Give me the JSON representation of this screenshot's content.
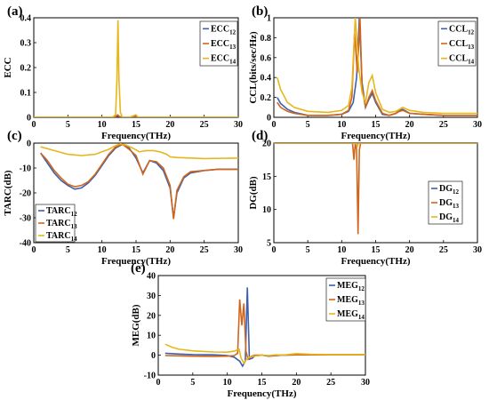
{
  "colors": {
    "s12": "#3c5fb0",
    "s13": "#d0661c",
    "s14": "#e8b619"
  },
  "chart_data": [
    {
      "panel": "(a)",
      "type": "line",
      "xlabel": "Frequency(THz)",
      "ylabel": "ECC",
      "xlim": [
        0,
        30
      ],
      "ylim": [
        0,
        0.4
      ],
      "xticks": [
        0,
        5,
        10,
        15,
        20,
        25,
        30
      ],
      "yticks": [
        0,
        0.1,
        0.2,
        0.3,
        0.4
      ],
      "ytick_labels": [
        "0",
        "0.1",
        "0.2",
        "0.3",
        "0.4"
      ],
      "legend": "top-right",
      "series": [
        {
          "name": "ECC",
          "sub": "12",
          "x": [
            0,
            11.5,
            12,
            12.3,
            12.6,
            13,
            14,
            15,
            15.3,
            16,
            30
          ],
          "y": [
            0,
            0,
            0.002,
            0.005,
            0.002,
            0,
            0,
            0.004,
            0,
            0,
            0
          ]
        },
        {
          "name": "ECC",
          "sub": "13",
          "x": [
            0,
            11.5,
            12,
            12.3,
            12.6,
            13,
            30
          ],
          "y": [
            0,
            0,
            0.003,
            0.01,
            0.003,
            0,
            0
          ]
        },
        {
          "name": "ECC",
          "sub": "14",
          "x": [
            0,
            11.5,
            12,
            12.2,
            12.35,
            12.5,
            12.7,
            13,
            14,
            15,
            15.3,
            16,
            30
          ],
          "y": [
            0,
            0,
            0.01,
            0.15,
            0.39,
            0.15,
            0.02,
            0,
            0,
            0.01,
            0,
            0,
            0
          ]
        }
      ]
    },
    {
      "panel": "(b)",
      "type": "line",
      "xlabel": "Frequency(THz)",
      "ylabel": "CCL(bits/sec/Hz)",
      "xlim": [
        0,
        30
      ],
      "ylim": [
        0,
        1
      ],
      "xticks": [
        0,
        5,
        10,
        15,
        20,
        25,
        30
      ],
      "yticks": [
        0,
        0.2,
        0.4,
        0.6,
        0.8,
        1
      ],
      "ytick_labels": [
        "0",
        "0.2",
        "0.4",
        "0.6",
        "0.8",
        "1"
      ],
      "legend": "top-right",
      "series": [
        {
          "name": "CCL",
          "sub": "12",
          "x": [
            0.5,
            1,
            2,
            3,
            5,
            8,
            10,
            11,
            11.7,
            12.2,
            12.6,
            13,
            13.5,
            14,
            14.5,
            15,
            16,
            17,
            18,
            18.5,
            19,
            20,
            22,
            25,
            30
          ],
          "y": [
            0.2,
            0.14,
            0.08,
            0.05,
            0.02,
            0.02,
            0.03,
            0.06,
            0.15,
            0.4,
            1.0,
            0.35,
            0.1,
            0.18,
            0.24,
            0.15,
            0.03,
            0.02,
            0.04,
            0.07,
            0.08,
            0.04,
            0.03,
            0.02,
            0.02
          ]
        },
        {
          "name": "CCL",
          "sub": "13",
          "x": [
            0.5,
            1,
            2,
            3,
            5,
            8,
            10,
            11,
            11.5,
            11.9,
            12.3,
            12.7,
            13,
            13.5,
            14,
            14.5,
            15,
            16,
            17,
            18,
            18.5,
            19,
            20,
            22,
            25,
            30
          ],
          "y": [
            0.15,
            0.1,
            0.06,
            0.04,
            0.02,
            0.02,
            0.03,
            0.07,
            0.2,
            0.85,
            0.45,
            1.0,
            0.3,
            0.1,
            0.2,
            0.27,
            0.17,
            0.04,
            0.02,
            0.04,
            0.06,
            0.07,
            0.04,
            0.03,
            0.02,
            0.02
          ]
        },
        {
          "name": "CCL",
          "sub": "14",
          "x": [
            0.5,
            1,
            2,
            3,
            5,
            8,
            10,
            11,
            11.5,
            12,
            12.5,
            13,
            13.5,
            14,
            14.5,
            15,
            16,
            17,
            18,
            19,
            20,
            22,
            25,
            30
          ],
          "y": [
            0.4,
            0.28,
            0.15,
            0.1,
            0.06,
            0.05,
            0.07,
            0.12,
            0.3,
            1.0,
            0.5,
            0.25,
            0.15,
            0.35,
            0.42,
            0.25,
            0.08,
            0.05,
            0.06,
            0.1,
            0.07,
            0.05,
            0.04,
            0.04
          ]
        }
      ]
    },
    {
      "panel": "(c)",
      "type": "line",
      "xlabel": "Frequency(THz)",
      "ylabel": "TARC(dB)",
      "xlim": [
        0,
        30
      ],
      "ylim": [
        -40,
        0
      ],
      "xticks": [
        0,
        5,
        10,
        15,
        20,
        25,
        30
      ],
      "yticks": [
        -40,
        -30,
        -20,
        -10,
        0
      ],
      "ytick_labels": [
        "-40",
        "-30",
        "-20",
        "-10",
        "0"
      ],
      "legend": "lower-left",
      "series": [
        {
          "name": "TARC",
          "sub": "12",
          "x": [
            1,
            2,
            3,
            4,
            5,
            6,
            7,
            8,
            9,
            10,
            11,
            12,
            13,
            14,
            15,
            16,
            17,
            18,
            19,
            20,
            20.5,
            21,
            22,
            23,
            25,
            27,
            30
          ],
          "y": [
            -4,
            -8,
            -12,
            -15,
            -17,
            -18.5,
            -18,
            -16,
            -13,
            -9,
            -5,
            -2,
            -0.5,
            -2,
            -6,
            -12,
            -7,
            -8,
            -11,
            -18,
            -30,
            -20,
            -14,
            -12,
            -11,
            -10.5,
            -10.5
          ]
        },
        {
          "name": "TARC",
          "sub": "13",
          "x": [
            1,
            2,
            3,
            4,
            5,
            6,
            7,
            8,
            9,
            10,
            11,
            12,
            13,
            14,
            15,
            16,
            17,
            18,
            19,
            20,
            20.5,
            21,
            22,
            23,
            25,
            27,
            30
          ],
          "y": [
            -4,
            -7,
            -11,
            -14,
            -16.5,
            -17.5,
            -17,
            -15.5,
            -12.5,
            -8.5,
            -4.5,
            -1.5,
            -0.5,
            -2.5,
            -5,
            -12.5,
            -7,
            -7.5,
            -10,
            -17,
            -30.5,
            -19,
            -13.5,
            -11.5,
            -11,
            -10.5,
            -10.5
          ]
        },
        {
          "name": "TARC",
          "sub": "14",
          "x": [
            1,
            3,
            5,
            7,
            9,
            10,
            11,
            12,
            12.7,
            13.5,
            14.5,
            15.5,
            16.5,
            17.5,
            18.5,
            19.5,
            20,
            21,
            23,
            25,
            30
          ],
          "y": [
            -1.5,
            -3,
            -4.5,
            -5,
            -4.5,
            -3.5,
            -2.5,
            -1,
            -0.3,
            -0.8,
            -2,
            -3.5,
            -3,
            -3,
            -3.5,
            -4.5,
            -5.5,
            -5.8,
            -6,
            -6.2,
            -6
          ]
        }
      ]
    },
    {
      "panel": "(d)",
      "type": "line",
      "xlabel": "Frequency(THz)",
      "ylabel": "DG(dB)",
      "xlim": [
        0,
        30
      ],
      "ylim": [
        5,
        20
      ],
      "xticks": [
        0,
        5,
        10,
        15,
        20,
        25,
        30
      ],
      "yticks": [
        5,
        10,
        15,
        20
      ],
      "ytick_labels": [
        "5",
        "10",
        "15",
        "20"
      ],
      "legend": "right",
      "series": [
        {
          "name": "DG",
          "sub": "12",
          "x": [
            0,
            11.9,
            12,
            12.1,
            30
          ],
          "y": [
            20,
            20,
            19.9,
            20,
            20
          ]
        },
        {
          "name": "DG",
          "sub": "13",
          "x": [
            0,
            11.6,
            11.8,
            12,
            12.2,
            12.4,
            12.6,
            12.8,
            30
          ],
          "y": [
            20,
            20,
            17.5,
            20,
            19,
            6.3,
            19,
            20,
            20
          ]
        },
        {
          "name": "DG",
          "sub": "14",
          "x": [
            0,
            12.1,
            12.3,
            12.5,
            30
          ],
          "y": [
            20,
            20,
            19.5,
            20,
            20
          ]
        }
      ]
    },
    {
      "panel": "(e)",
      "type": "line",
      "xlabel": "Frequency(THz)",
      "ylabel": "MEG(dB)",
      "xlim": [
        0,
        30
      ],
      "ylim": [
        -10,
        40
      ],
      "xticks": [
        0,
        5,
        10,
        15,
        20,
        25,
        30
      ],
      "yticks": [
        -10,
        0,
        10,
        20,
        30,
        40
      ],
      "ytick_labels": [
        "-10",
        "0",
        "10",
        "20",
        "30",
        "40"
      ],
      "legend": "top-right",
      "series": [
        {
          "name": "MEG",
          "sub": "12",
          "x": [
            1,
            3,
            5,
            8,
            10,
            11,
            11.8,
            12.2,
            12.6,
            12.9,
            13.2,
            13.6,
            14,
            15,
            16,
            18,
            20,
            25,
            30
          ],
          "y": [
            1,
            0.6,
            0.3,
            0.2,
            -0.2,
            -1,
            -3,
            -5.5,
            -3,
            34,
            -2,
            -1.5,
            -0.3,
            0,
            -0.5,
            0,
            0.2,
            0.3,
            0.3
          ]
        },
        {
          "name": "MEG",
          "sub": "13",
          "x": [
            1,
            3,
            5,
            8,
            10,
            11,
            11.5,
            11.8,
            12.1,
            12.4,
            12.7,
            13,
            13.5,
            14,
            15,
            16,
            18,
            20,
            25,
            30
          ],
          "y": [
            -0.2,
            -0.3,
            -0.5,
            -0.6,
            -0.5,
            -0.2,
            1,
            28,
            15,
            26,
            2,
            -2,
            -0.5,
            0,
            0,
            -0.3,
            0.1,
            0.2,
            0.2,
            0.2
          ]
        },
        {
          "name": "MEG",
          "sub": "14",
          "x": [
            1,
            2,
            3,
            5,
            8,
            10,
            11,
            11.7,
            12,
            12.4,
            12.8,
            13.2,
            14,
            15,
            16,
            17,
            18,
            20,
            22,
            25,
            30
          ],
          "y": [
            5.5,
            4,
            3,
            2.2,
            1.6,
            1.5,
            2,
            3,
            -1.5,
            -4,
            -2,
            -1,
            -0.4,
            0,
            -0.2,
            0.2,
            0,
            0.8,
            0.5,
            0.3,
            0.3
          ]
        }
      ]
    }
  ]
}
